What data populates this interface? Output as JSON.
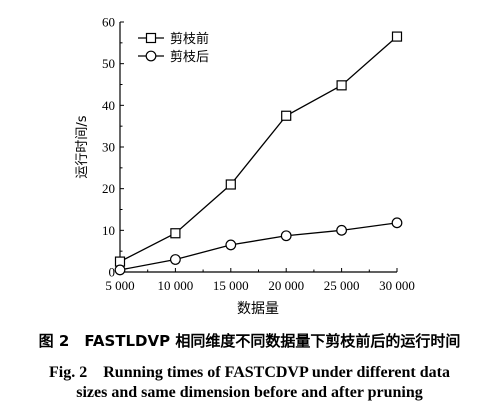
{
  "chart_data": {
    "type": "line",
    "title": "",
    "xlabel": "数据量",
    "ylabel": "运行时间/s",
    "x": [
      5000,
      10000,
      15000,
      20000,
      25000,
      30000
    ],
    "x_tick_labels": [
      "5 000",
      "10 000",
      "15 000",
      "20 000",
      "25 000",
      "30 000"
    ],
    "xlim": [
      5000,
      30000
    ],
    "ylim": [
      0,
      60
    ],
    "y_ticks": [
      0,
      10,
      20,
      30,
      40,
      50,
      60
    ],
    "grid": false,
    "legend_position": "top-left",
    "series": [
      {
        "name": "剪枝前",
        "marker": "square",
        "values": [
          2.5,
          9.3,
          21.0,
          37.5,
          44.8,
          56.5
        ]
      },
      {
        "name": "剪枝后",
        "marker": "circle",
        "values": [
          0.5,
          3.0,
          6.5,
          8.7,
          10.0,
          11.8
        ]
      }
    ]
  },
  "caption": {
    "chinese": "图 2　FASTLDVP 相同维度不同数据量下剪枝前后的运行时间",
    "english_line1": "Fig. 2　Running times of FASTCDVP under different data",
    "english_line2": "sizes and same dimension before and after pruning"
  }
}
